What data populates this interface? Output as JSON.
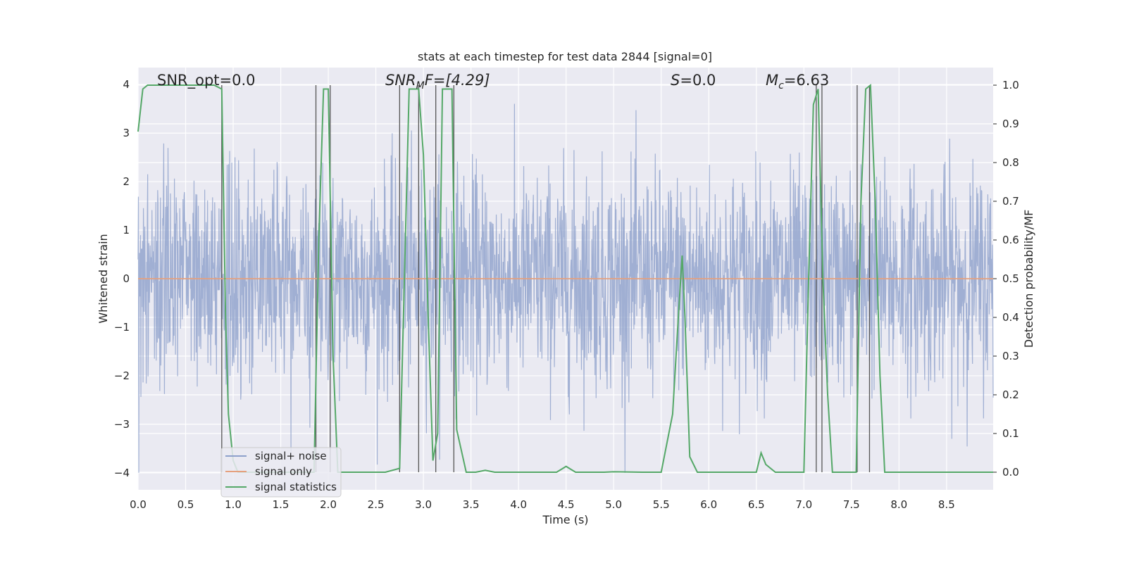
{
  "chart_data": {
    "type": "line",
    "title": "stats at each timestep for test data 2844 [signal=0]",
    "xlabel": "Time (s)",
    "ylabel_left": "Whitened strain",
    "ylabel_right": "Detection probability/MF",
    "xlim": [
      0,
      8.99
    ],
    "ylim_left": [
      -4.35,
      4.35
    ],
    "ylim_right": [
      -0.0455,
      1.0455
    ],
    "x_ticks": [
      "0.0",
      "0.5",
      "1.0",
      "1.5",
      "2.0",
      "2.5",
      "3.0",
      "3.5",
      "4.0",
      "4.5",
      "5.0",
      "5.5",
      "6.0",
      "6.5",
      "7.0",
      "7.5",
      "8.0",
      "8.5"
    ],
    "y_ticks_left": [
      "4",
      "3",
      "2",
      "1",
      "0",
      "−1",
      "−2",
      "−3",
      "−4"
    ],
    "y_ticks_right": [
      "1.0",
      "0.9",
      "0.8",
      "0.7",
      "0.6",
      "0.5",
      "0.4",
      "0.3",
      "0.2",
      "0.1",
      "0.0"
    ],
    "grid": true,
    "legend_placement": "lower-left",
    "annotations": {
      "snr_opt": "SNR_opt=0.0",
      "snr_mf_base": "SNR",
      "snr_mf_sub": "M",
      "snr_mf_rest": "F=[4.29]",
      "s_italic": "S",
      "s_rest": "=0.0",
      "mc_base": "M",
      "mc_sub": "c",
      "mc_rest": "=6.63"
    },
    "series": [
      {
        "name": "signal+ noise",
        "color": "#8da0cb",
        "description": "whitened strain noise, roughly Gaussian between -4 and 4"
      },
      {
        "name": "signal only",
        "color": "#e5a07e",
        "values_constant": 0
      },
      {
        "name": "signal statistics",
        "color": "#55a868",
        "x": [
          0.0,
          0.05,
          0.1,
          0.2,
          0.4,
          0.6,
          0.8,
          0.88,
          0.92,
          0.95,
          1.0,
          1.05,
          1.1,
          1.2,
          1.4,
          1.6,
          1.75,
          1.85,
          1.9,
          1.95,
          2.0,
          2.05,
          2.1,
          2.2,
          2.4,
          2.6,
          2.75,
          2.8,
          2.85,
          2.95,
          3.0,
          3.05,
          3.1,
          3.15,
          3.2,
          3.3,
          3.35,
          3.45,
          3.55,
          3.65,
          3.75,
          4.0,
          4.4,
          4.5,
          4.6,
          4.9,
          5.0,
          5.3,
          5.5,
          5.62,
          5.68,
          5.72,
          5.75,
          5.8,
          5.88,
          6.0,
          6.5,
          6.55,
          6.6,
          6.65,
          6.7,
          6.8,
          7.0,
          7.05,
          7.1,
          7.15,
          7.2,
          7.25,
          7.3,
          7.5,
          7.55,
          7.6,
          7.65,
          7.7,
          7.75,
          7.8,
          7.85,
          8.0,
          8.5,
          8.99
        ],
        "y": [
          0.88,
          0.99,
          1.0,
          1.0,
          1.0,
          1.0,
          1.0,
          0.99,
          0.4,
          0.15,
          0.03,
          0.0,
          0.0,
          0.0,
          0.0,
          0.0,
          0.0,
          0.0,
          0.6,
          0.99,
          0.99,
          0.3,
          0.0,
          0.0,
          0.0,
          0.0,
          0.01,
          0.5,
          0.99,
          0.99,
          0.82,
          0.4,
          0.03,
          0.1,
          0.99,
          0.99,
          0.11,
          0.0,
          0.0,
          0.005,
          0.0,
          0.0,
          0.0,
          0.015,
          0.0,
          0.0,
          0.001,
          0.0,
          0.0,
          0.15,
          0.4,
          0.56,
          0.4,
          0.04,
          0.0,
          0.0,
          0.0,
          0.05,
          0.02,
          0.01,
          0.0,
          0.0,
          0.0,
          0.5,
          0.95,
          0.99,
          0.5,
          0.2,
          0.0,
          0.0,
          0.0,
          0.7,
          0.99,
          1.0,
          0.7,
          0.25,
          0.0,
          0.0,
          0.0,
          0.0
        ]
      }
    ],
    "vertical_lines_x": [
      0.88,
      1.87,
      2.02,
      2.75,
      2.95,
      3.13,
      3.32,
      7.13,
      7.19,
      7.56,
      7.69
    ]
  }
}
